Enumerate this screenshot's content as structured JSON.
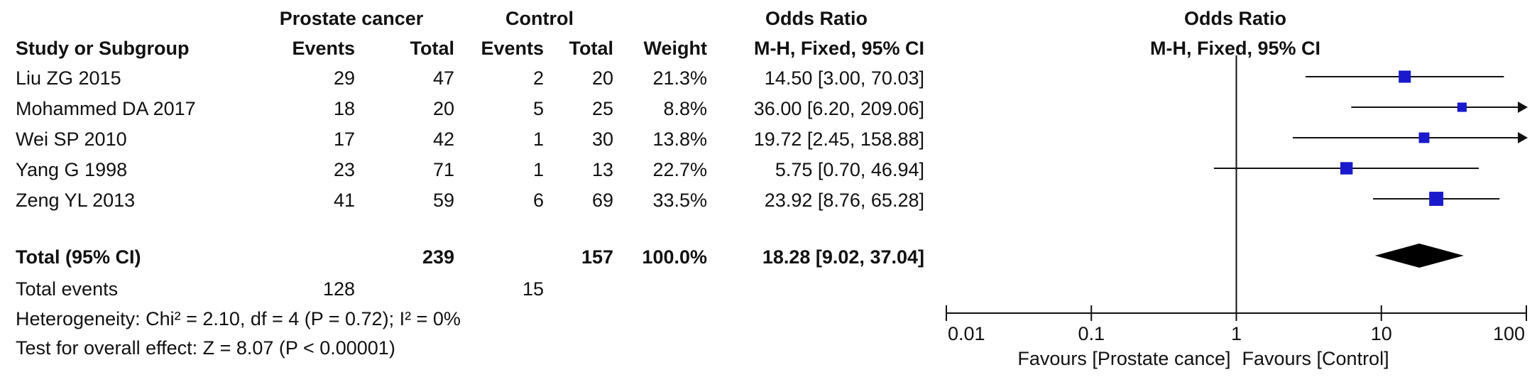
{
  "header": {
    "group1": "Prostate cancer",
    "group2": "Control",
    "or_title": "Odds Ratio",
    "col_study": "Study or Subgroup",
    "col_events": "Events",
    "col_total": "Total",
    "col_weight": "Weight",
    "col_method": "M-H, Fixed, 95% CI",
    "plot_title": "Odds Ratio",
    "plot_method": "M-H, Fixed, 95% CI"
  },
  "studies": [
    {
      "name": "Liu ZG 2015",
      "e1": "29",
      "t1": "47",
      "e2": "2",
      "t2": "20",
      "weight": "21.3%",
      "ci_text": "14.50 [3.00, 70.03]"
    },
    {
      "name": "Mohammed DA 2017",
      "e1": "18",
      "t1": "20",
      "e2": "5",
      "t2": "25",
      "weight": "8.8%",
      "ci_text": "36.00 [6.20, 209.06]"
    },
    {
      "name": "Wei SP 2010",
      "e1": "17",
      "t1": "42",
      "e2": "1",
      "t2": "30",
      "weight": "13.8%",
      "ci_text": "19.72 [2.45, 158.88]"
    },
    {
      "name": "Yang G 1998",
      "e1": "23",
      "t1": "71",
      "e2": "1",
      "t2": "13",
      "weight": "22.7%",
      "ci_text": "5.75 [0.70, 46.94]"
    },
    {
      "name": "Zeng YL 2013",
      "e1": "41",
      "t1": "59",
      "e2": "6",
      "t2": "69",
      "weight": "33.5%",
      "ci_text": "23.92 [8.76, 65.28]"
    }
  ],
  "total": {
    "label": "Total (95% CI)",
    "t1": "239",
    "t2": "157",
    "weight": "100.0%",
    "ci_text": "18.28 [9.02, 37.04]"
  },
  "events": {
    "label": "Total events",
    "e1": "128",
    "e2": "15"
  },
  "heterogeneity": "Heterogeneity: Chi² = 2.10, df = 4 (P = 0.72); I² = 0%",
  "overall_effect": "Test for overall effect: Z = 8.07 (P < 0.00001)",
  "chart_data": {
    "type": "forest",
    "x_scale": "log",
    "xlim": [
      0.01,
      100
    ],
    "ticks": [
      0.01,
      0.1,
      1,
      10,
      100
    ],
    "tick_labels": [
      "0.01",
      "0.1",
      "1",
      "10",
      "100"
    ],
    "favours_left": "Favours [Prostate cance]",
    "favours_right": "Favours [Control]",
    "marker_color": "#1a1acc",
    "diamond_color": "#000000",
    "studies": [
      {
        "name": "Liu ZG 2015",
        "or": 14.5,
        "lo": 3.0,
        "hi": 70.03,
        "weight": 21.3
      },
      {
        "name": "Mohammed DA 2017",
        "or": 36.0,
        "lo": 6.2,
        "hi": 209.06,
        "weight": 8.8
      },
      {
        "name": "Wei SP 2010",
        "or": 19.72,
        "lo": 2.45,
        "hi": 158.88,
        "weight": 13.8
      },
      {
        "name": "Yang G 1998",
        "or": 5.75,
        "lo": 0.7,
        "hi": 46.94,
        "weight": 22.7
      },
      {
        "name": "Zeng YL 2013",
        "or": 23.92,
        "lo": 8.76,
        "hi": 65.28,
        "weight": 33.5
      }
    ],
    "pooled": {
      "or": 18.28,
      "lo": 9.02,
      "hi": 37.04
    }
  }
}
